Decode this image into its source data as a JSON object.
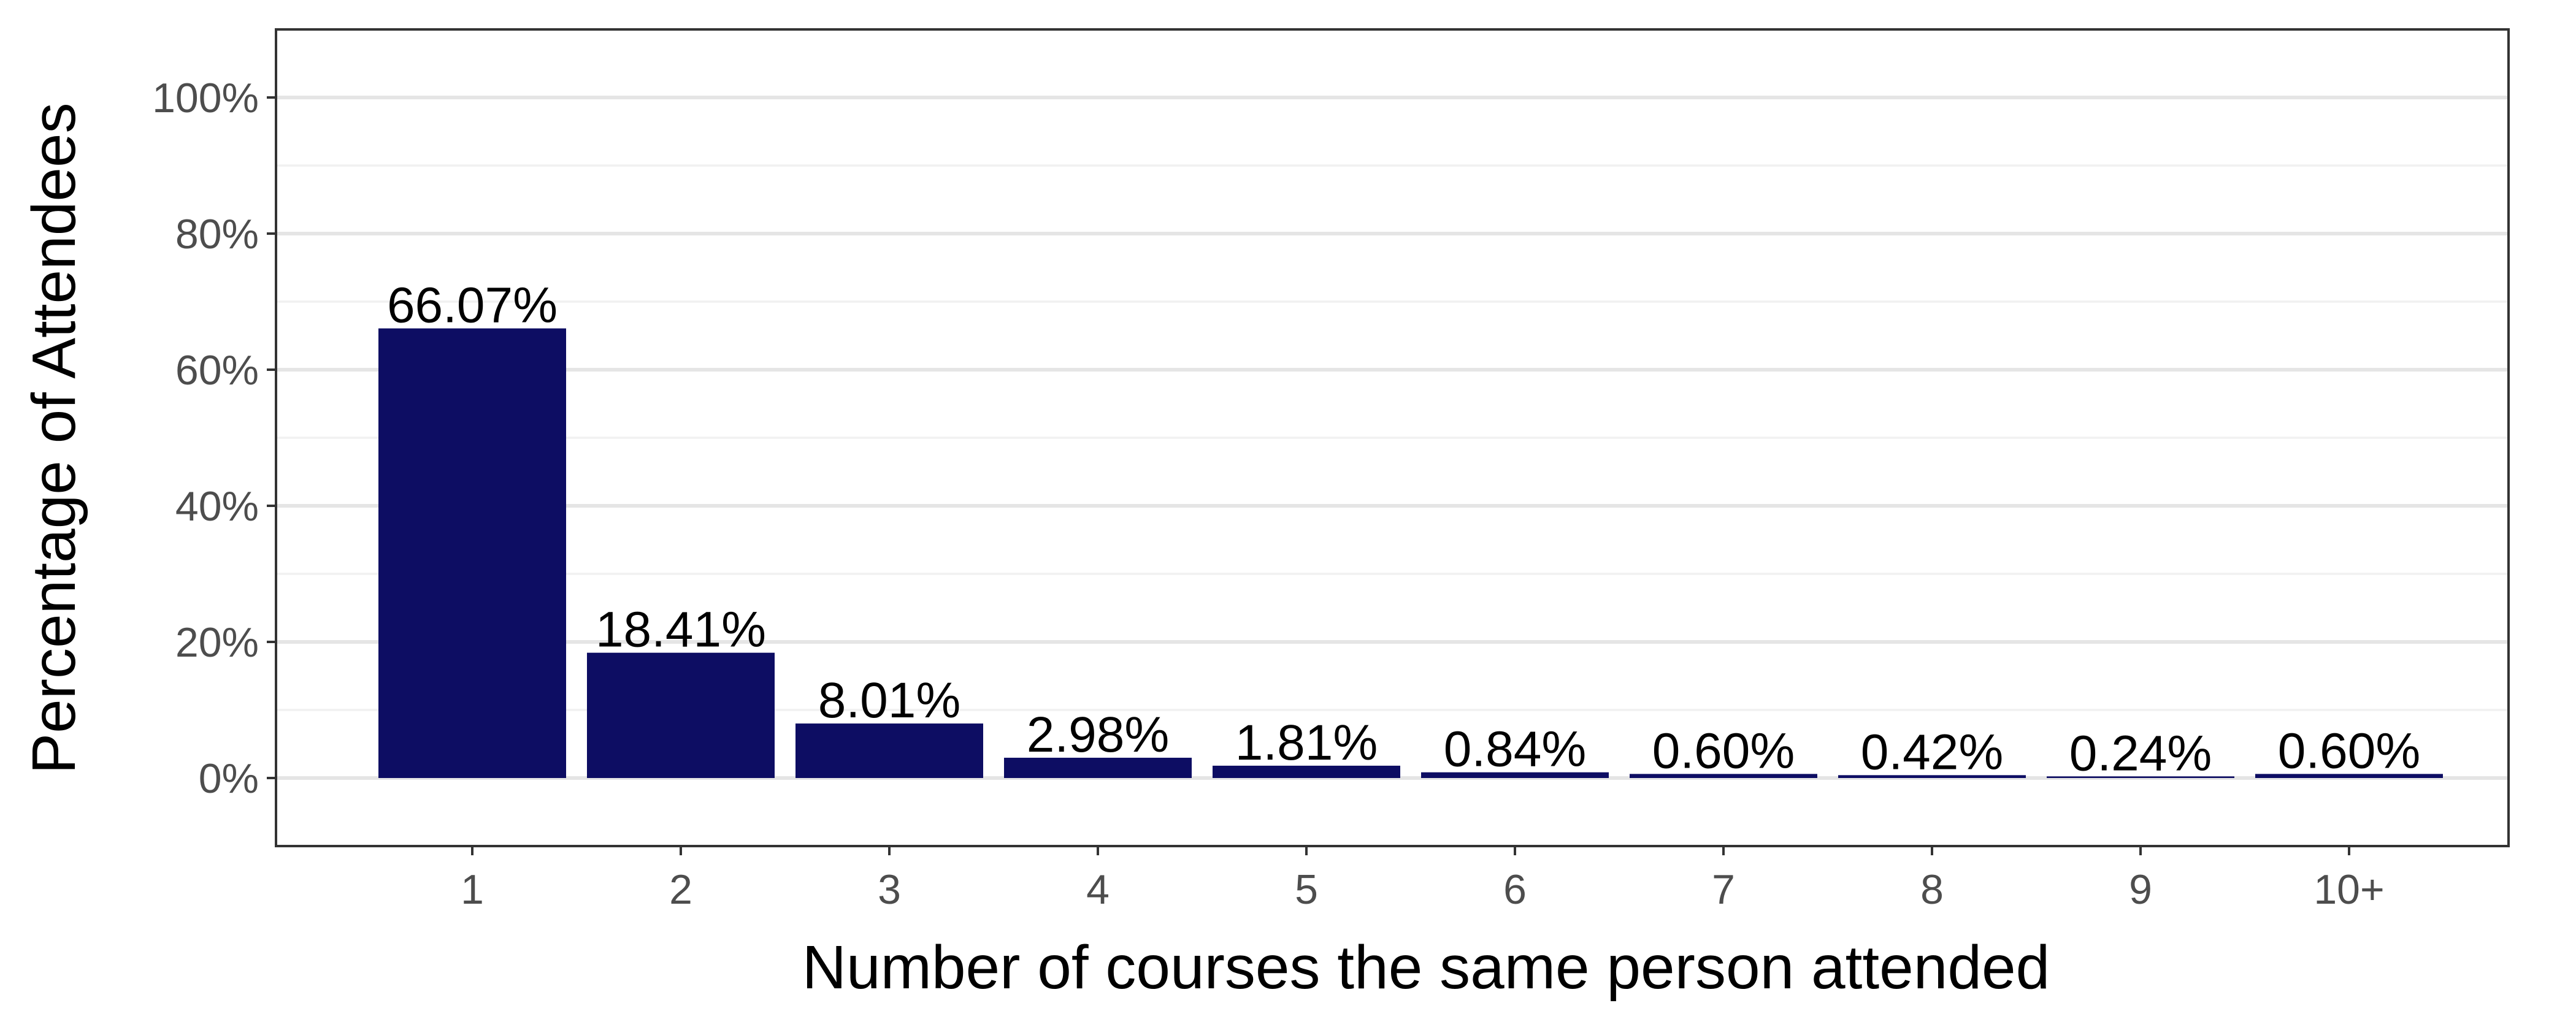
{
  "chart_data": {
    "type": "bar",
    "title": "",
    "xlabel": "Number of courses the same person attended",
    "ylabel": "Percentage of Attendees",
    "categories": [
      "1",
      "2",
      "3",
      "4",
      "5",
      "6",
      "7",
      "8",
      "9",
      "10+"
    ],
    "values": [
      66.07,
      18.41,
      8.01,
      2.98,
      1.81,
      0.84,
      0.6,
      0.42,
      0.24,
      0.6
    ],
    "value_labels": [
      "66.07%",
      "18.41%",
      "8.01%",
      "2.98%",
      "1.81%",
      "0.84%",
      "0.60%",
      "0.42%",
      "0.24%",
      "0.60%"
    ],
    "ylim": [
      -10,
      110
    ],
    "y_ticks": [
      0,
      20,
      40,
      60,
      80,
      100
    ],
    "y_tick_labels": [
      "0%",
      "20%",
      "40%",
      "60%",
      "80%",
      "100%"
    ],
    "y_minor_ticks": [
      10,
      30,
      50,
      70,
      90
    ],
    "grid": "horizontal",
    "legend": "none",
    "bar_color": "#0d0d63"
  }
}
